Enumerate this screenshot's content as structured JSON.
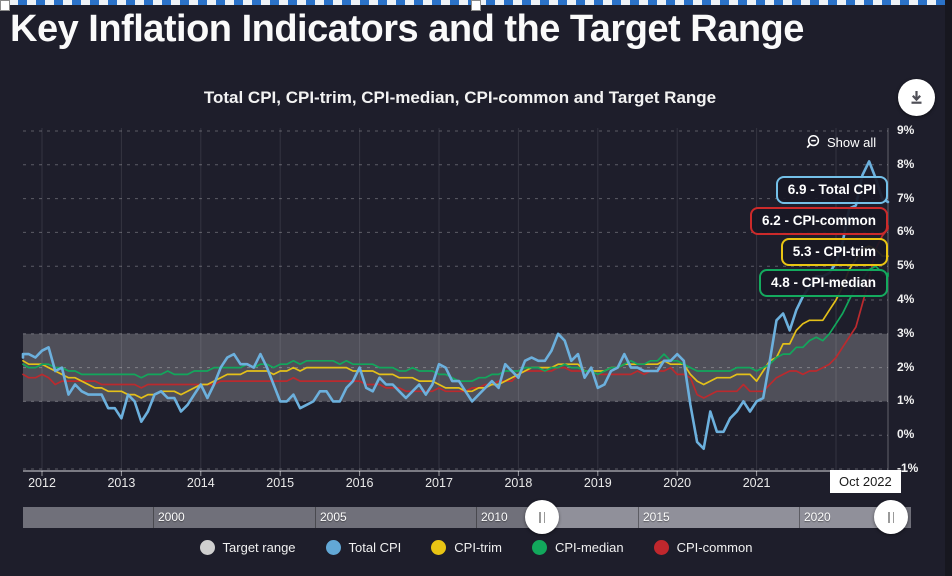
{
  "page": {
    "title": "Key Inflation Indicators and the Target Range"
  },
  "chart": {
    "subtitle": "Total CPI, CPI-trim, CPI-median, CPI-common and Target Range",
    "show_all_label": "Show all",
    "end_date_label": "Oct 2022",
    "y_tick_labels": [
      "9%",
      "8%",
      "7%",
      "6%",
      "5%",
      "4%",
      "3%",
      "2%",
      "1%",
      "0%",
      "-1%"
    ],
    "x_tick_labels": [
      "2012",
      "2013",
      "2014",
      "2015",
      "2016",
      "2017",
      "2018",
      "2019",
      "2020",
      "2021"
    ],
    "annotations": [
      {
        "text": "6.9 - Total CPI",
        "color": "#74c0e8"
      },
      {
        "text": "6.2 - CPI-common",
        "color": "#cc2a2a"
      },
      {
        "text": "5.3 - CPI-trim",
        "color": "#e9c513"
      },
      {
        "text": "4.8 - CPI-median",
        "color": "#14aa5e"
      }
    ]
  },
  "chart_data": {
    "type": "line",
    "x_start": "2011-09",
    "x_interval": "monthly",
    "x_end": "2022-10",
    "xlim_years": [
      2011.7,
      2022.85
    ],
    "ylim": [
      -1,
      9
    ],
    "y_unit": "percent",
    "grid": {
      "horizontal": "dotted every 1%",
      "vertical": "solid every year",
      "legend_position": "bottom"
    },
    "target_range_band": {
      "label": "Target range",
      "from": 1,
      "to": 3,
      "color": "rgba(255,255,255,0.22)"
    },
    "series": [
      {
        "name": "Total CPI",
        "color": "#6cb0dd",
        "latest": 6.9,
        "values": [
          2.3,
          2.4,
          2.4,
          2.3,
          2.5,
          2.6,
          1.9,
          2.0,
          1.2,
          1.5,
          1.3,
          1.2,
          1.2,
          1.2,
          0.8,
          0.8,
          0.5,
          1.2,
          1.0,
          0.4,
          0.7,
          1.2,
          1.3,
          1.1,
          1.1,
          0.7,
          0.9,
          1.2,
          1.5,
          1.1,
          1.5,
          2.0,
          2.3,
          2.4,
          2.1,
          2.1,
          2.0,
          2.4,
          2.0,
          1.5,
          1.0,
          1.0,
          1.2,
          0.8,
          0.9,
          1.0,
          1.3,
          1.3,
          1.0,
          1.0,
          1.4,
          1.6,
          2.0,
          1.4,
          1.3,
          1.7,
          1.5,
          1.5,
          1.3,
          1.1,
          1.3,
          1.5,
          1.2,
          1.5,
          2.1,
          2.0,
          1.6,
          1.6,
          1.3,
          1.0,
          1.2,
          1.4,
          1.6,
          1.4,
          2.1,
          1.9,
          1.7,
          2.2,
          2.3,
          2.2,
          2.2,
          2.5,
          3.0,
          2.8,
          2.2,
          2.4,
          1.7,
          2.0,
          1.4,
          1.5,
          1.9,
          2.0,
          2.4,
          2.0,
          2.0,
          1.9,
          1.9,
          1.9,
          2.2,
          2.2,
          2.4,
          2.2,
          0.9,
          -0.2,
          -0.4,
          0.7,
          0.1,
          0.1,
          0.5,
          0.7,
          1.0,
          0.7,
          1.0,
          1.1,
          2.2,
          3.4,
          3.6,
          3.1,
          3.7,
          4.1,
          4.4,
          4.7,
          4.7,
          4.8,
          5.1,
          5.7,
          6.7,
          6.8,
          7.7,
          8.1,
          7.6,
          7.0,
          6.9,
          6.9
        ]
      },
      {
        "name": "CPI-trim",
        "color": "#e4c019",
        "latest": 5.3,
        "values": [
          2.2,
          2.2,
          2.1,
          2.1,
          2.1,
          2.0,
          1.9,
          1.8,
          1.7,
          1.7,
          1.6,
          1.5,
          1.4,
          1.4,
          1.3,
          1.3,
          1.3,
          1.2,
          1.2,
          1.1,
          1.2,
          1.2,
          1.3,
          1.3,
          1.3,
          1.2,
          1.3,
          1.4,
          1.5,
          1.5,
          1.6,
          1.7,
          1.8,
          1.8,
          1.8,
          1.9,
          1.9,
          1.9,
          1.9,
          1.8,
          1.9,
          1.9,
          2.0,
          1.9,
          2.0,
          2.0,
          2.0,
          2.0,
          2.0,
          2.0,
          2.0,
          1.9,
          1.9,
          1.9,
          1.9,
          1.8,
          1.8,
          1.8,
          1.7,
          1.7,
          1.7,
          1.6,
          1.6,
          1.6,
          1.5,
          1.4,
          1.4,
          1.4,
          1.3,
          1.3,
          1.4,
          1.4,
          1.5,
          1.5,
          1.6,
          1.7,
          1.8,
          1.9,
          2.0,
          2.0,
          2.0,
          2.0,
          2.1,
          2.1,
          2.1,
          2.1,
          1.9,
          1.9,
          1.9,
          1.9,
          2.0,
          2.0,
          2.1,
          2.1,
          2.1,
          2.1,
          2.1,
          2.1,
          2.2,
          2.1,
          2.1,
          2.1,
          1.8,
          1.6,
          1.5,
          1.6,
          1.7,
          1.7,
          1.7,
          1.8,
          1.8,
          1.8,
          1.6,
          1.9,
          2.2,
          2.3,
          2.7,
          2.7,
          3.1,
          3.3,
          3.4,
          3.4,
          3.4,
          3.7,
          4.0,
          4.4,
          4.9,
          5.2,
          5.5,
          5.6,
          5.5,
          5.3,
          5.3,
          5.3
        ]
      },
      {
        "name": "CPI-median",
        "color": "#12a75c",
        "latest": 4.8,
        "values": [
          2.1,
          2.1,
          2.0,
          2.0,
          2.1,
          2.1,
          2.0,
          2.0,
          1.9,
          1.9,
          1.8,
          1.8,
          1.8,
          1.8,
          1.8,
          1.8,
          1.8,
          1.8,
          1.8,
          1.7,
          1.8,
          1.8,
          1.8,
          1.9,
          1.8,
          1.8,
          1.8,
          1.9,
          1.9,
          1.9,
          2.0,
          2.0,
          2.0,
          2.0,
          2.0,
          2.1,
          2.0,
          2.1,
          2.1,
          2.0,
          2.1,
          2.1,
          2.2,
          2.1,
          2.2,
          2.2,
          2.2,
          2.2,
          2.2,
          2.1,
          2.2,
          2.1,
          2.1,
          2.1,
          2.1,
          2.0,
          2.0,
          2.0,
          1.9,
          1.9,
          2.0,
          1.9,
          1.9,
          1.9,
          1.8,
          1.8,
          1.7,
          1.6,
          1.6,
          1.6,
          1.7,
          1.7,
          1.8,
          1.8,
          1.9,
          1.9,
          1.9,
          2.0,
          2.0,
          2.0,
          1.9,
          2.0,
          2.0,
          2.1,
          2.0,
          2.0,
          1.9,
          1.9,
          1.8,
          1.9,
          2.0,
          2.0,
          2.1,
          2.2,
          2.1,
          2.1,
          2.2,
          2.2,
          2.4,
          2.2,
          2.2,
          2.1,
          2.0,
          1.9,
          1.9,
          1.9,
          1.9,
          1.9,
          1.9,
          2.0,
          2.0,
          2.0,
          1.9,
          2.0,
          2.1,
          2.3,
          2.4,
          2.4,
          2.6,
          2.6,
          2.8,
          2.9,
          2.8,
          3.0,
          3.3,
          3.6,
          4.0,
          4.4,
          4.6,
          4.9,
          5.0,
          4.8,
          4.7,
          4.8
        ]
      },
      {
        "name": "CPI-common",
        "color": "#bb2a2e",
        "latest": 6.2,
        "values": [
          1.8,
          1.8,
          1.7,
          1.7,
          1.8,
          1.7,
          1.5,
          1.6,
          1.6,
          1.6,
          1.6,
          1.6,
          1.6,
          1.5,
          1.5,
          1.5,
          1.5,
          1.5,
          1.5,
          1.4,
          1.5,
          1.5,
          1.5,
          1.5,
          1.5,
          1.5,
          1.5,
          1.5,
          1.5,
          1.5,
          1.5,
          1.6,
          1.6,
          1.6,
          1.6,
          1.6,
          1.6,
          1.6,
          1.6,
          1.6,
          1.6,
          1.6,
          1.7,
          1.6,
          1.6,
          1.6,
          1.6,
          1.6,
          1.6,
          1.6,
          1.6,
          1.6,
          1.6,
          1.5,
          1.5,
          1.5,
          1.4,
          1.4,
          1.4,
          1.3,
          1.3,
          1.3,
          1.3,
          1.3,
          1.4,
          1.3,
          1.3,
          1.3,
          1.3,
          1.4,
          1.4,
          1.5,
          1.5,
          1.6,
          1.6,
          1.6,
          1.8,
          1.9,
          1.9,
          1.9,
          1.9,
          1.9,
          2.0,
          2.0,
          1.9,
          1.9,
          1.9,
          1.9,
          1.8,
          1.8,
          1.8,
          1.8,
          1.8,
          1.8,
          1.9,
          1.8,
          1.9,
          1.9,
          1.9,
          2.0,
          1.8,
          1.8,
          1.7,
          1.2,
          1.1,
          1.2,
          1.3,
          1.3,
          1.3,
          1.3,
          1.5,
          1.3,
          1.3,
          1.3,
          1.5,
          1.7,
          1.8,
          1.9,
          1.9,
          1.8,
          1.9,
          1.9,
          2.0,
          2.1,
          2.3,
          2.6,
          2.9,
          3.2,
          3.9,
          4.6,
          5.5,
          5.9,
          6.1,
          6.2
        ]
      }
    ]
  },
  "range_slider": {
    "tick_labels": [
      "2000",
      "2005",
      "2010",
      "2015",
      "2020"
    ]
  },
  "legend": {
    "items": [
      {
        "label": "Target range",
        "color": "#cfcfcf"
      },
      {
        "label": "Total CPI",
        "color": "#62a8d6"
      },
      {
        "label": "CPI-trim",
        "color": "#e8c414"
      },
      {
        "label": "CPI-median",
        "color": "#12a85c"
      },
      {
        "label": "CPI-common",
        "color": "#c0272d"
      }
    ]
  }
}
